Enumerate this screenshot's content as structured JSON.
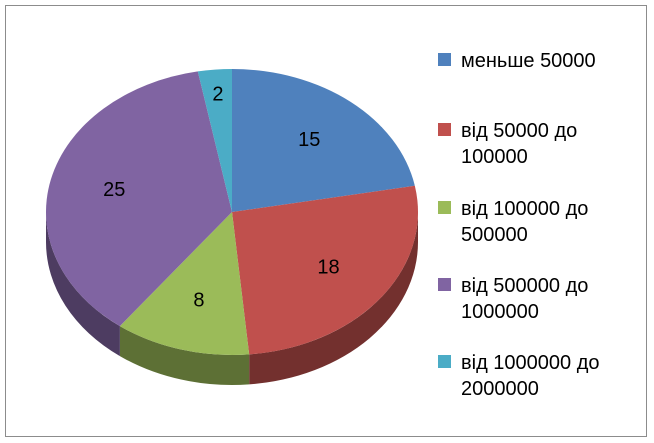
{
  "chart_data": {
    "type": "pie",
    "categories": [
      "меньше 50000",
      "від 50000 до 100000",
      "від 100000 до 500000",
      "від 500000 до 1000000",
      "від 1000000 до 2000000"
    ],
    "values": [
      15,
      18,
      8,
      25,
      2
    ],
    "colors": [
      "#4f81bd",
      "#c0504d",
      "#9bbb59",
      "#8064a2",
      "#4bacc6"
    ],
    "legend": "right"
  }
}
